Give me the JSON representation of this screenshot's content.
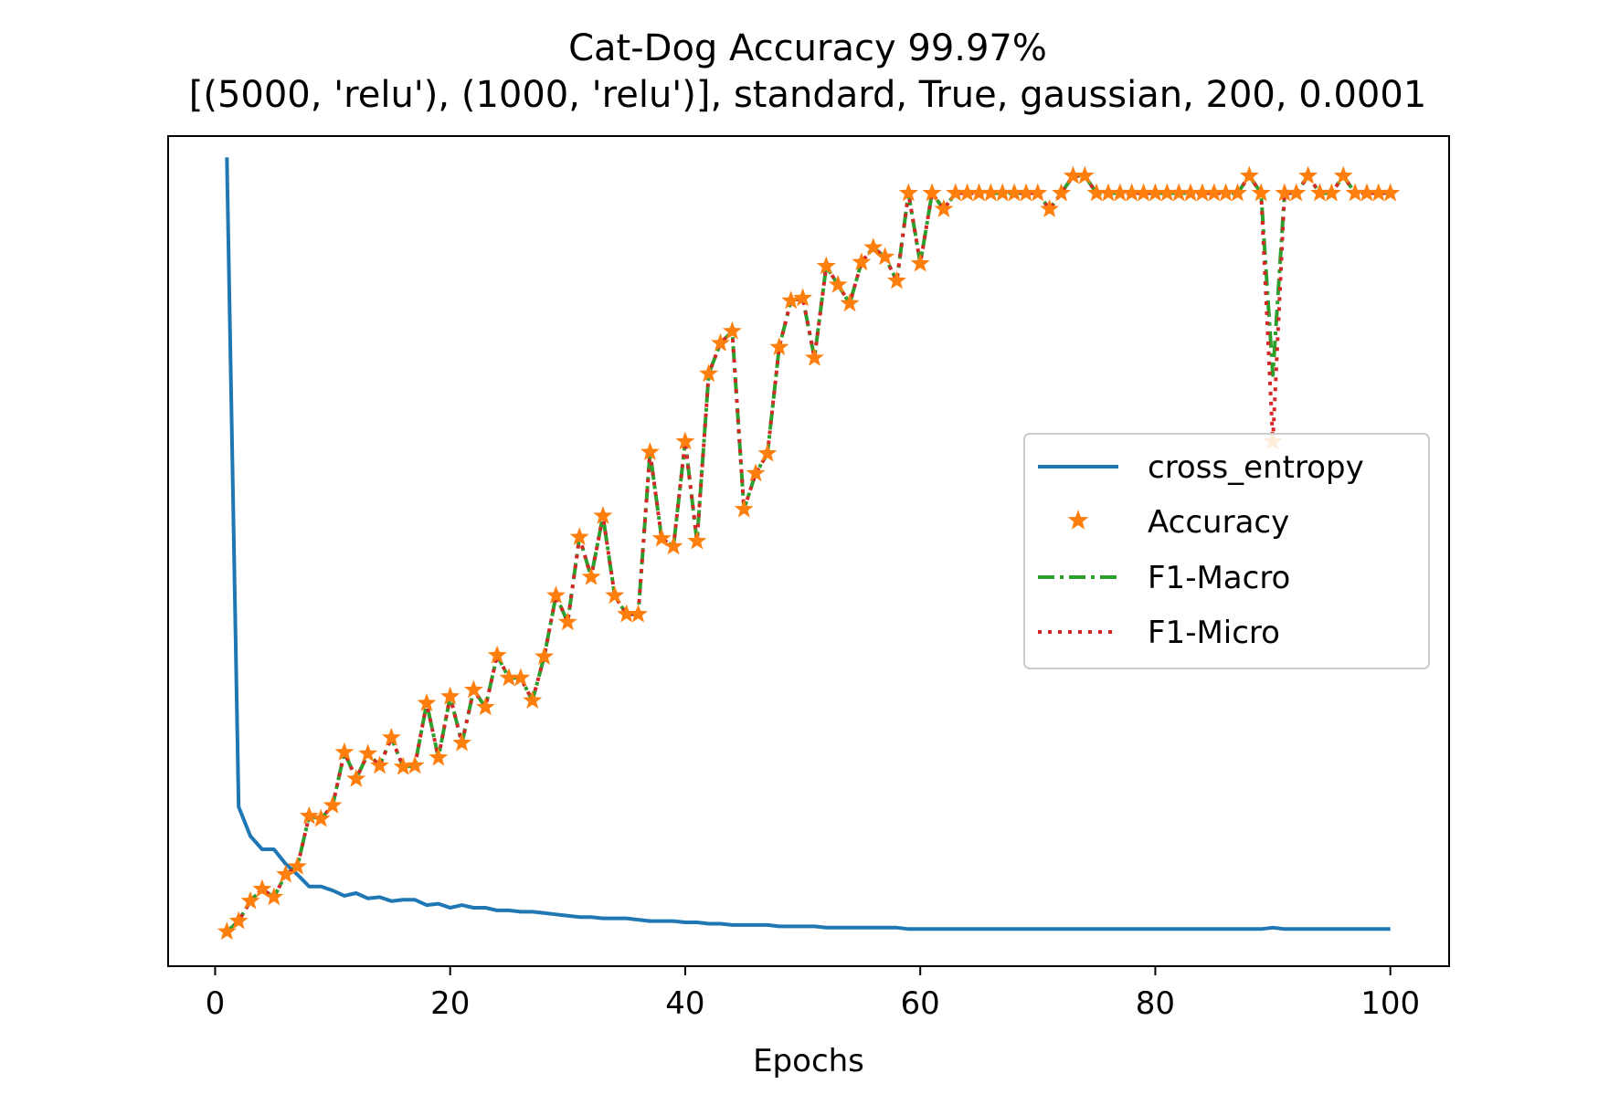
{
  "chart_data": {
    "type": "line",
    "title": "Cat-Dog Accuracy 99.97%",
    "subtitle": "[(5000, 'relu'), (1000, 'relu')], standard, True, gaussian, 200, 0.0001",
    "xlabel": "Epochs",
    "ylabel": "",
    "xlim": [
      -4,
      105
    ],
    "ylim": [
      0.405,
      1.03
    ],
    "xticks": [
      0,
      20,
      40,
      60,
      80,
      100
    ],
    "xtick_labels": [
      "0",
      "20",
      "40",
      "60",
      "80",
      "100"
    ],
    "yticks_visible": false,
    "grid": false,
    "legend_position": "center right",
    "x": [
      1,
      2,
      3,
      4,
      5,
      6,
      7,
      8,
      9,
      10,
      11,
      12,
      13,
      14,
      15,
      16,
      17,
      18,
      19,
      20,
      21,
      22,
      23,
      24,
      25,
      26,
      27,
      28,
      29,
      30,
      31,
      32,
      33,
      34,
      35,
      36,
      37,
      38,
      39,
      40,
      41,
      42,
      43,
      44,
      45,
      46,
      47,
      48,
      49,
      50,
      51,
      52,
      53,
      54,
      55,
      56,
      57,
      58,
      59,
      60,
      61,
      62,
      63,
      64,
      65,
      66,
      67,
      68,
      69,
      70,
      71,
      72,
      73,
      74,
      75,
      76,
      77,
      78,
      79,
      80,
      81,
      82,
      83,
      84,
      85,
      86,
      87,
      88,
      89,
      90,
      91,
      92,
      93,
      94,
      95,
      96,
      97,
      98,
      99,
      100
    ],
    "series": [
      {
        "name": "cross_entropy",
        "style": "solid",
        "color": "#1f77b4",
        "values": [
          1.014,
          0.525,
          0.503,
          0.493,
          0.493,
          0.482,
          0.474,
          0.465,
          0.465,
          0.462,
          0.458,
          0.46,
          0.456,
          0.457,
          0.454,
          0.455,
          0.455,
          0.451,
          0.452,
          0.449,
          0.451,
          0.449,
          0.449,
          0.447,
          0.447,
          0.446,
          0.446,
          0.445,
          0.444,
          0.443,
          0.442,
          0.442,
          0.441,
          0.441,
          0.441,
          0.44,
          0.439,
          0.439,
          0.439,
          0.438,
          0.438,
          0.437,
          0.437,
          0.436,
          0.436,
          0.436,
          0.436,
          0.435,
          0.435,
          0.435,
          0.435,
          0.434,
          0.434,
          0.434,
          0.434,
          0.434,
          0.434,
          0.434,
          0.433,
          0.433,
          0.433,
          0.433,
          0.433,
          0.433,
          0.433,
          0.433,
          0.433,
          0.433,
          0.433,
          0.433,
          0.433,
          0.433,
          0.433,
          0.433,
          0.433,
          0.433,
          0.433,
          0.433,
          0.433,
          0.433,
          0.433,
          0.433,
          0.433,
          0.433,
          0.433,
          0.433,
          0.433,
          0.433,
          0.433,
          0.434,
          0.433,
          0.433,
          0.433,
          0.433,
          0.433,
          0.433,
          0.433,
          0.433,
          0.433,
          0.433
        ]
      },
      {
        "name": "Accuracy",
        "style": "markers",
        "marker": "star",
        "color": "#ff7f0e",
        "values": [
          0.431,
          0.439,
          0.454,
          0.463,
          0.457,
          0.474,
          0.48,
          0.518,
          0.516,
          0.526,
          0.566,
          0.546,
          0.565,
          0.556,
          0.577,
          0.555,
          0.556,
          0.603,
          0.562,
          0.608,
          0.573,
          0.613,
          0.6,
          0.639,
          0.622,
          0.622,
          0.605,
          0.638,
          0.684,
          0.664,
          0.728,
          0.698,
          0.744,
          0.684,
          0.67,
          0.67,
          0.792,
          0.727,
          0.721,
          0.8,
          0.725,
          0.851,
          0.874,
          0.883,
          0.749,
          0.776,
          0.791,
          0.871,
          0.906,
          0.908,
          0.863,
          0.932,
          0.918,
          0.904,
          0.935,
          0.946,
          0.939,
          0.921,
          0.987,
          0.934,
          0.987,
          0.975,
          0.987,
          0.987,
          0.987,
          0.987,
          0.987,
          0.987,
          0.987,
          0.987,
          0.975,
          0.987,
          1.0,
          1.0,
          0.987,
          0.987,
          0.987,
          0.987,
          0.987,
          0.987,
          0.987,
          0.987,
          0.987,
          0.987,
          0.987,
          0.987,
          0.987,
          1.0,
          0.987,
          0.8,
          0.987,
          0.987,
          1.0,
          0.987,
          0.987,
          1.0,
          0.987,
          0.987,
          0.987,
          0.987
        ]
      },
      {
        "name": "F1-Macro",
        "style": "dashdot",
        "color": "#2ca02c",
        "values": [
          0.431,
          0.439,
          0.454,
          0.463,
          0.457,
          0.474,
          0.48,
          0.518,
          0.516,
          0.526,
          0.566,
          0.546,
          0.565,
          0.556,
          0.577,
          0.555,
          0.556,
          0.603,
          0.562,
          0.608,
          0.573,
          0.613,
          0.6,
          0.639,
          0.622,
          0.622,
          0.605,
          0.638,
          0.684,
          0.664,
          0.728,
          0.698,
          0.744,
          0.684,
          0.67,
          0.67,
          0.792,
          0.727,
          0.721,
          0.8,
          0.725,
          0.851,
          0.874,
          0.883,
          0.749,
          0.776,
          0.791,
          0.871,
          0.906,
          0.908,
          0.863,
          0.932,
          0.918,
          0.904,
          0.935,
          0.946,
          0.939,
          0.921,
          0.987,
          0.934,
          0.987,
          0.975,
          0.987,
          0.987,
          0.987,
          0.987,
          0.987,
          0.987,
          0.987,
          0.987,
          0.975,
          0.987,
          1.0,
          1.0,
          0.987,
          0.987,
          0.987,
          0.987,
          0.987,
          0.987,
          0.987,
          0.987,
          0.987,
          0.987,
          0.987,
          0.987,
          0.987,
          1.0,
          0.987,
          0.85,
          0.987,
          0.987,
          1.0,
          0.987,
          0.987,
          1.0,
          0.987,
          0.987,
          0.987,
          0.987
        ]
      },
      {
        "name": "F1-Micro",
        "style": "dotted",
        "color": "#d62728",
        "values": [
          0.431,
          0.439,
          0.454,
          0.463,
          0.457,
          0.474,
          0.48,
          0.518,
          0.516,
          0.526,
          0.566,
          0.546,
          0.565,
          0.556,
          0.577,
          0.555,
          0.556,
          0.603,
          0.562,
          0.608,
          0.573,
          0.613,
          0.6,
          0.639,
          0.622,
          0.622,
          0.605,
          0.638,
          0.684,
          0.664,
          0.728,
          0.698,
          0.744,
          0.684,
          0.67,
          0.67,
          0.792,
          0.727,
          0.721,
          0.8,
          0.725,
          0.851,
          0.874,
          0.883,
          0.749,
          0.776,
          0.791,
          0.871,
          0.906,
          0.908,
          0.863,
          0.932,
          0.918,
          0.904,
          0.935,
          0.946,
          0.939,
          0.921,
          0.987,
          0.934,
          0.987,
          0.975,
          0.987,
          0.987,
          0.987,
          0.987,
          0.987,
          0.987,
          0.987,
          0.987,
          0.975,
          0.987,
          1.0,
          1.0,
          0.987,
          0.987,
          0.987,
          0.987,
          0.987,
          0.987,
          0.987,
          0.987,
          0.987,
          0.987,
          0.987,
          0.987,
          0.987,
          1.0,
          0.987,
          0.8,
          0.987,
          0.987,
          1.0,
          0.987,
          0.987,
          1.0,
          0.987,
          0.987,
          0.987,
          0.987
        ]
      }
    ]
  }
}
